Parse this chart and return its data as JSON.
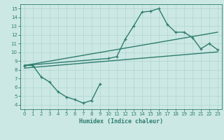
{
  "line1_x": [
    0,
    1,
    2,
    3,
    4,
    5,
    6,
    7,
    8,
    9
  ],
  "line1_y": [
    8.5,
    8.5,
    7.2,
    6.6,
    5.5,
    4.9,
    4.6,
    4.2,
    4.5,
    6.4
  ],
  "line2_x": [
    0,
    10,
    11,
    12,
    13,
    14,
    15,
    16,
    17,
    18,
    19,
    20,
    21,
    22,
    23
  ],
  "line2_y": [
    8.5,
    9.3,
    9.5,
    11.5,
    13.0,
    14.6,
    14.7,
    15.0,
    13.2,
    12.3,
    12.3,
    11.7,
    10.4,
    11.0,
    10.3
  ],
  "line3_x": [
    0,
    23
  ],
  "line3_y": [
    8.5,
    12.3
  ],
  "line4_x": [
    0,
    23
  ],
  "line4_y": [
    8.2,
    10.05
  ],
  "color": "#2e7d6e",
  "bg_color": "#cce8e4",
  "grid_color": "#aed4cf",
  "xlabel": "Humidex (Indice chaleur)",
  "xlim": [
    -0.5,
    23.5
  ],
  "ylim": [
    3.5,
    15.5
  ],
  "xticks": [
    0,
    1,
    2,
    3,
    4,
    5,
    6,
    7,
    8,
    9,
    10,
    11,
    12,
    13,
    14,
    15,
    16,
    17,
    18,
    19,
    20,
    21,
    22,
    23
  ],
  "yticks": [
    4,
    5,
    6,
    7,
    8,
    9,
    10,
    11,
    12,
    13,
    14,
    15
  ],
  "marker": "+",
  "markersize": 3.5,
  "linewidth": 1.0,
  "tick_fontsize": 5.0,
  "xlabel_fontsize": 6.0
}
